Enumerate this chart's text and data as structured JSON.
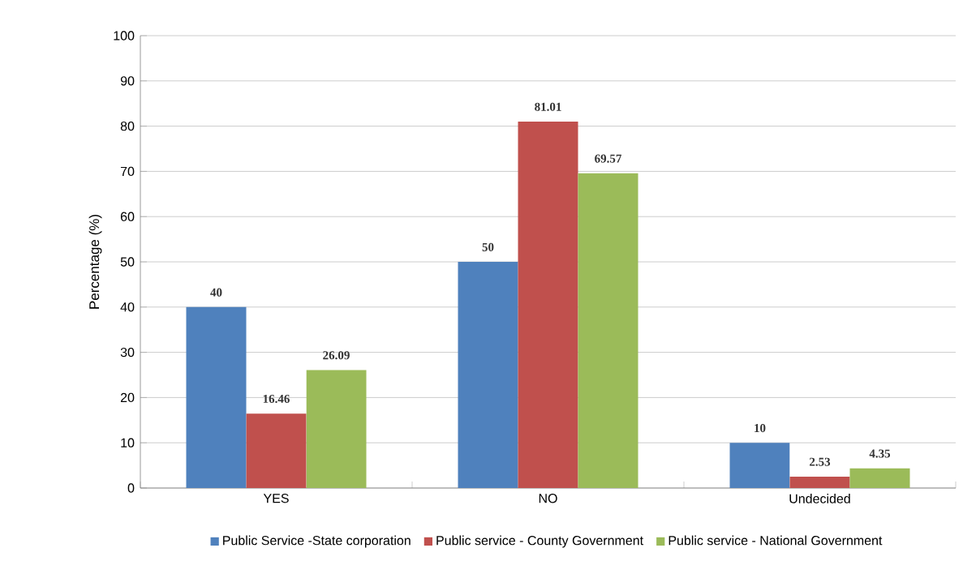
{
  "chart_data": {
    "type": "bar",
    "ylabel": "Percentage (%)",
    "categories": [
      "YES",
      "NO",
      "Undecided"
    ],
    "series": [
      {
        "name": "Public Service -State corporation",
        "color": "#4f81bd",
        "values": [
          40,
          50,
          10
        ]
      },
      {
        "name": "Public service - County Government",
        "color": "#c0504d",
        "values": [
          16.46,
          81.01,
          2.53
        ]
      },
      {
        "name": "Public service - National Government",
        "color": "#9bbb59",
        "values": [
          26.09,
          69.57,
          4.35
        ]
      }
    ],
    "ylim": [
      0,
      100
    ],
    "yticks": [
      0,
      10,
      20,
      30,
      40,
      50,
      60,
      70,
      80,
      90,
      100
    ],
    "grid": "y",
    "legend": "bottom",
    "data_labels": true
  }
}
